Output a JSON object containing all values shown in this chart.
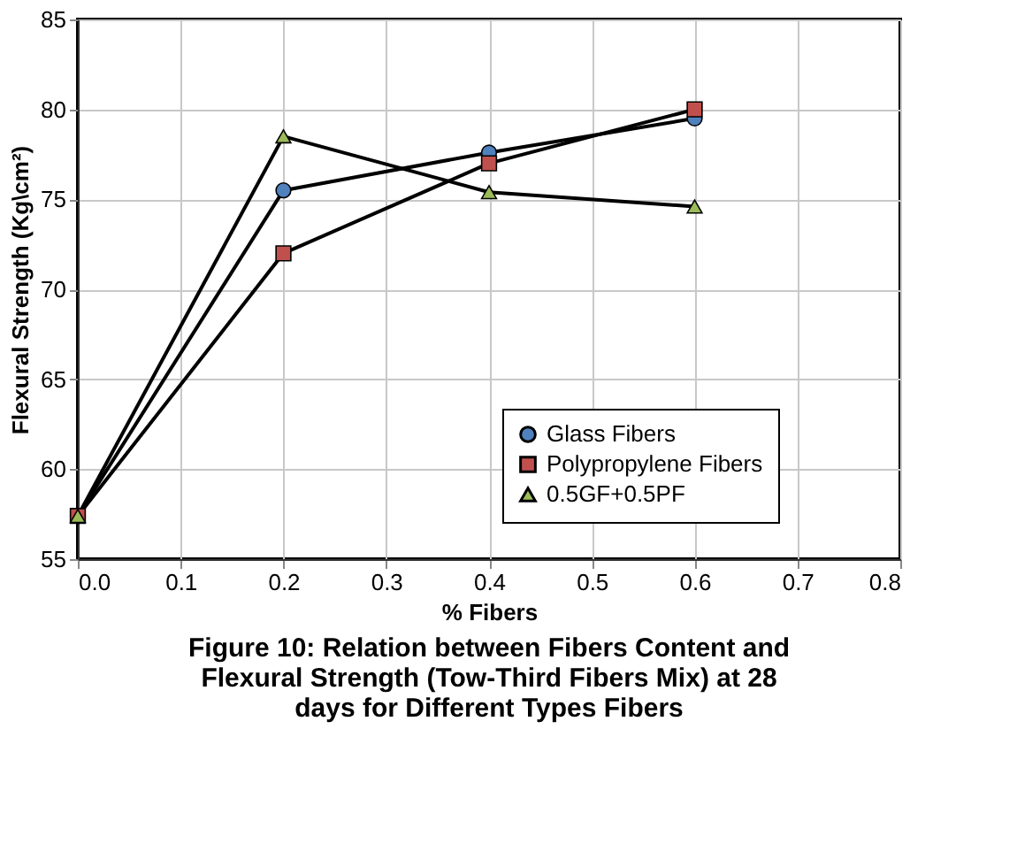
{
  "chart_data": {
    "type": "line",
    "title": "Figure 10: Relation between Fibers Content and Flexural Strength (Tow-Third Fibers Mix) at 28 days for Different Types Fibers",
    "xlabel": "% Fibers",
    "ylabel": "Flexural Strength (Kg\\cm²)",
    "x": [
      0.0,
      0.2,
      0.4,
      0.6
    ],
    "series": [
      {
        "name": "Glass Fibers",
        "color": "#4f81bd",
        "marker": "circle",
        "values": [
          57.4,
          75.5,
          77.6,
          79.5
        ]
      },
      {
        "name": "Polypropylene Fibers",
        "color": "#c0504d",
        "marker": "square",
        "values": [
          57.4,
          72.0,
          77.0,
          80.0
        ]
      },
      {
        "name": "0.5GF+0.5PF",
        "color": "#9bbb59",
        "marker": "triangle",
        "values": [
          57.4,
          78.5,
          75.4,
          74.6
        ]
      }
    ],
    "xlim": [
      0.0,
      0.8
    ],
    "xticks": [
      {
        "value": 0,
        "label": "0.0"
      },
      0.1,
      0.2,
      0.3,
      0.4,
      0.5,
      0.6,
      0.7,
      0.8
    ],
    "ylim": [
      55,
      85
    ],
    "yticks": [
      55,
      60,
      65,
      70,
      75,
      80,
      85
    ],
    "grid": true,
    "legend": "bottom right",
    "line_style": "solid"
  }
}
